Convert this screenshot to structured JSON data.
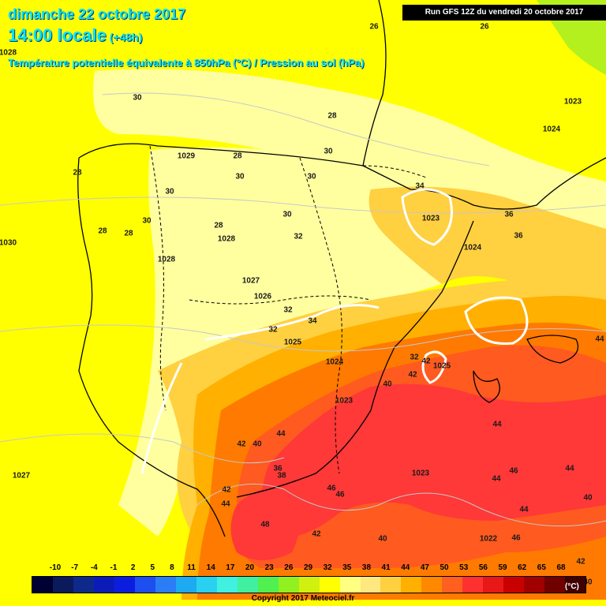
{
  "header": {
    "date": "dimanche 22 octobre 2017",
    "time": "14:00 locale",
    "lead": "(+48h)",
    "variable": "Température potentielle équivalente à 850hPa (°C) / Pression au sol (hPa)"
  },
  "run_info": "Run GFS 12Z du vendredi 20 octobre 2017",
  "temperature_labels": [
    "26",
    "26",
    "30",
    "28",
    "28",
    "30",
    "30",
    "28",
    "30",
    "30",
    "30",
    "28",
    "28",
    "30",
    "28",
    "32",
    "34",
    "36",
    "36",
    "32",
    "32",
    "34",
    "32",
    "42",
    "40",
    "42",
    "40",
    "36",
    "38",
    "42",
    "44",
    "48",
    "46",
    "46",
    "44",
    "46",
    "40",
    "42",
    "44",
    "44",
    "40",
    "46",
    "42",
    "40",
    "44",
    "44",
    "42",
    "44"
  ],
  "pressure_labels": [
    "1028",
    "1023",
    "1029",
    "1024",
    "1023",
    "1028",
    "1028",
    "1024",
    "1027",
    "1026",
    "1025",
    "1025",
    "1024",
    "1023",
    "1023",
    "1022",
    "1027",
    "1030"
  ],
  "colorbar": {
    "ticks": [
      "-10",
      "-7",
      "-4",
      "-1",
      "2",
      "5",
      "8",
      "11",
      "14",
      "17",
      "20",
      "23",
      "26",
      "29",
      "32",
      "35",
      "38",
      "41",
      "44",
      "47",
      "50",
      "53",
      "56",
      "59",
      "62",
      "65",
      "68"
    ],
    "unit": "(°C)",
    "colors": [
      "#000033",
      "#0a1a5a",
      "#0d2a8a",
      "#0a1bb8",
      "#0b1ee0",
      "#1d4ff0",
      "#2a7df5",
      "#1eaaf0",
      "#2ad0f0",
      "#40f0e0",
      "#40f0a0",
      "#50f050",
      "#90f020",
      "#d0f010",
      "#ffff00",
      "#ffff80",
      "#ffe880",
      "#ffd040",
      "#ffb000",
      "#ff8800",
      "#ff6020",
      "#ff3030",
      "#e81818",
      "#c80000",
      "#a00000",
      "#700000",
      "#400000"
    ]
  },
  "copyright": "Copyright 2017 Meteociel.fr",
  "fill_colors": {
    "sea_yellow": "#ffff00",
    "pale": "#ffffa0",
    "light_orange": "#ffd040",
    "orange": "#ffb000",
    "dark_orange": "#ff7a00",
    "red_orange": "#ff5a20",
    "red": "#ff3838",
    "green": "#b4f01e"
  }
}
